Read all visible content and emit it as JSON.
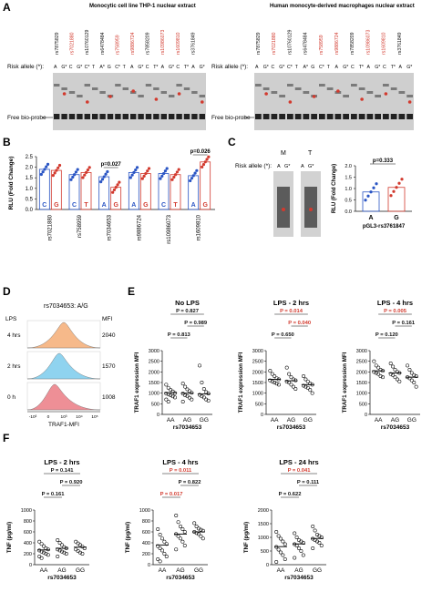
{
  "panel_letters": [
    "A",
    "B",
    "C",
    "D",
    "E",
    "F"
  ],
  "panelA": {
    "left_title": "Monocytic cell line THP-1 nuclear extract",
    "right_title": "Human monocyte-derived macrophages nuclear extract",
    "snps": [
      "rs7875829",
      "rs7021880",
      "rs10760129",
      "rs6478484",
      "rs758959",
      "rs9886724",
      "rs7858209",
      "rs10986073",
      "rs1609810",
      "rs3761849"
    ],
    "snp_red": [
      false,
      true,
      false,
      false,
      true,
      true,
      false,
      true,
      true,
      false
    ],
    "risk_allele_label": "Risk allele (*):",
    "alleles": [
      "A",
      "G*",
      "C",
      "G*",
      "C*",
      "T",
      "A*",
      "G",
      "C*",
      "T",
      "A",
      "G*",
      "C",
      "T*",
      "A",
      "G*",
      "C",
      "T*",
      "A",
      "G*"
    ],
    "free_probe_label": "Free bio-probe"
  },
  "panelB": {
    "ylabel": "RLU (Fold Change)",
    "yticks": [
      "0.0",
      "0.5",
      "1.0",
      "1.5",
      "2.0",
      "2.5"
    ],
    "snps": [
      "rs7021880",
      "rs758959",
      "rs7034653",
      "rs9886724",
      "rs10986073",
      "rs1609810"
    ],
    "alleles": [
      [
        "C",
        "G"
      ],
      [
        "C",
        "T"
      ],
      [
        "A",
        "G"
      ],
      [
        "A",
        "G"
      ],
      [
        "C",
        "T"
      ],
      [
        "A",
        "G"
      ]
    ],
    "bar_means": [
      [
        1.9,
        1.85
      ],
      [
        1.65,
        1.75
      ],
      [
        1.55,
        1.05
      ],
      [
        1.75,
        1.7
      ],
      [
        1.7,
        1.65
      ],
      [
        1.6,
        2.25
      ]
    ],
    "pvalues": [
      {
        "pair": 2,
        "label": "p=0.027"
      },
      {
        "pair": 5,
        "label": "p=0.026"
      }
    ],
    "colors": {
      "blue": "#2a55c4",
      "red": "#d23a2e"
    }
  },
  "panelC": {
    "gel_labels": [
      "M",
      "T"
    ],
    "risk_allele_label": "Risk allele (*):",
    "gel_alleles": [
      "A",
      "G*",
      "A",
      "G*"
    ],
    "ylabel": "RLU (Fold Change)",
    "yticks": [
      "0.0",
      "0.5",
      "1.0",
      "1.5",
      "2.0"
    ],
    "categories": [
      "A",
      "G"
    ],
    "means": [
      0.85,
      1.05
    ],
    "pvalue": "p=0.333",
    "xlabel": "pGL3-rs3761847"
  },
  "panelD": {
    "title": "rs7034653: A/G",
    "lps_header": "LPS",
    "mfi_header": "MFI",
    "rows": [
      {
        "label": "4 hrs",
        "mfi": "2040",
        "color": "#f6b98a"
      },
      {
        "label": "2 hrs",
        "mfi": "1570",
        "color": "#8fd3ef"
      },
      {
        "label": "0 h",
        "mfi": "1008",
        "color": "#ee8f96"
      }
    ],
    "xlabel": "TRAF1-MFI",
    "xticks": [
      "-10³",
      "0",
      "10³",
      "10⁴",
      "10⁵"
    ]
  },
  "panelE": {
    "ylabel": "TRAF1 expression MFI",
    "xlabel": "rs7034653",
    "groups": [
      "AA",
      "AG",
      "GG"
    ],
    "yticks": [
      "0",
      "500",
      "1000",
      "1500",
      "2000",
      "2500",
      "3000"
    ],
    "plots": [
      {
        "title": "No LPS",
        "pvals": [
          {
            "label": "P = 0.827",
            "red": false
          },
          {
            "label": "P = 0.989",
            "red": false
          },
          {
            "label": "P = 0.813",
            "red": false
          }
        ],
        "means": [
          1020,
          1000,
          960
        ],
        "points": [
          [
            1400,
            1250,
            1150,
            1080,
            1000,
            980,
            950,
            900,
            850,
            800,
            700,
            600
          ],
          [
            1450,
            1300,
            1180,
            1100,
            1020,
            980,
            900,
            860,
            780,
            700,
            600
          ],
          [
            2300,
            1500,
            1200,
            1050,
            980,
            920,
            850,
            800,
            700,
            650
          ]
        ]
      },
      {
        "title": "LPS - 2 hrs",
        "pvals": [
          {
            "label": "P = 0.014",
            "red": true
          },
          {
            "label": "P = 0.040",
            "red": true
          },
          {
            "label": "P = 0.650",
            "red": false
          }
        ],
        "means": [
          1650,
          1580,
          1400
        ],
        "points": [
          [
            2050,
            1900,
            1800,
            1700,
            1650,
            1600,
            1550,
            1500,
            1450,
            1400
          ],
          [
            2200,
            1900,
            1750,
            1650,
            1600,
            1550,
            1500,
            1400,
            1300,
            1200
          ],
          [
            1800,
            1650,
            1550,
            1450,
            1400,
            1350,
            1300,
            1250,
            1150,
            1000
          ]
        ]
      },
      {
        "title": "LPS - 4 hrs",
        "pvals": [
          {
            "label": "P = 0.005",
            "red": true
          },
          {
            "label": "P = 0.161",
            "red": false
          },
          {
            "label": "P = 0.120",
            "red": false
          }
        ],
        "means": [
          2050,
          1950,
          1750
        ],
        "points": [
          [
            2500,
            2300,
            2200,
            2100,
            2050,
            2000,
            1950,
            1900,
            1800,
            1750
          ],
          [
            2400,
            2250,
            2100,
            2000,
            1950,
            1900,
            1850,
            1750,
            1650,
            1550
          ],
          [
            2300,
            2100,
            1950,
            1850,
            1800,
            1750,
            1700,
            1600,
            1500,
            1300
          ]
        ]
      }
    ]
  },
  "panelF": {
    "ylabel": "TNF (pg/ml)",
    "xlabel": "rs7034653",
    "groups": [
      "AA",
      "AG",
      "GG"
    ],
    "plots": [
      {
        "title": "LPS - 2 hrs",
        "yticks": [
          "0",
          "200",
          "400",
          "600",
          "800",
          "1000"
        ],
        "ymax": 1000,
        "pvals": [
          {
            "label": "P = 0.141",
            "red": false
          },
          {
            "label": "P = 0.920",
            "red": false
          },
          {
            "label": "P = 0.161",
            "red": false
          }
        ],
        "means": [
          270,
          300,
          320
        ],
        "points": [
          [
            420,
            380,
            340,
            300,
            280,
            260,
            240,
            220,
            200,
            180,
            150,
            120
          ],
          [
            450,
            400,
            360,
            320,
            300,
            280,
            260,
            240,
            220,
            200,
            150
          ],
          [
            420,
            390,
            360,
            330,
            300,
            280,
            250,
            220,
            200
          ]
        ]
      },
      {
        "title": "LPS - 4 hrs",
        "yticks": [
          "0",
          "200",
          "400",
          "600",
          "800",
          "1000"
        ],
        "ymax": 1000,
        "pvals": [
          {
            "label": "P = 0.011",
            "red": true
          },
          {
            "label": "P = 0.822",
            "red": false
          },
          {
            "label": "P = 0.017",
            "red": true
          }
        ],
        "means": [
          360,
          560,
          600
        ],
        "points": [
          [
            650,
            550,
            480,
            420,
            380,
            340,
            300,
            260,
            200,
            150,
            100,
            60
          ],
          [
            900,
            780,
            700,
            650,
            600,
            560,
            520,
            480,
            420,
            350,
            280
          ],
          [
            760,
            700,
            660,
            640,
            620,
            600,
            580,
            560,
            520,
            480
          ]
        ]
      },
      {
        "title": "LPS - 24 hrs",
        "yticks": [
          "0",
          "500",
          "1000",
          "1500",
          "2000"
        ],
        "ymax": 2000,
        "pvals": [
          {
            "label": "P = 0.041",
            "red": true
          },
          {
            "label": "P = 0.111",
            "red": false
          },
          {
            "label": "P = 0.622",
            "red": false
          }
        ],
        "means": [
          660,
          760,
          960
        ],
        "points": [
          [
            1200,
            1050,
            950,
            850,
            750,
            650,
            550,
            450,
            350,
            200,
            100
          ],
          [
            1150,
            1000,
            900,
            850,
            800,
            750,
            700,
            600,
            500,
            350,
            250
          ],
          [
            1400,
            1250,
            1100,
            1050,
            1000,
            950,
            900,
            850,
            800,
            700,
            600
          ]
        ]
      }
    ]
  }
}
